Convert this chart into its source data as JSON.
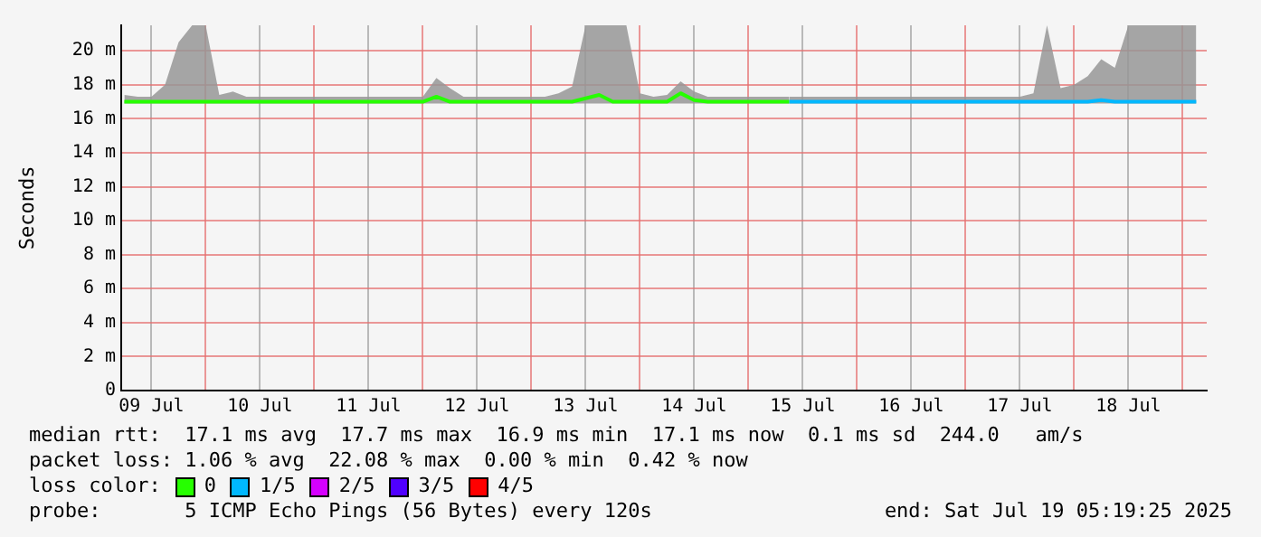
{
  "chart_data": {
    "type": "line",
    "ylabel": "Seconds",
    "legend_title": "loss color:",
    "legend": "bottom",
    "grid": true,
    "marker": "none",
    "line_style": "solid",
    "annotations": [
      "median rtt:  17.1 ms avg  17.7 ms max  16.9 ms min  17.1 ms now  0.1 ms sd  244.0   am/s",
      "packet loss: 1.06 % avg  22.08 % max  0.00 % min  0.42 % now",
      "probe:       5 ICMP Echo Pings (56 Bytes) every 120s",
      "end: Sat Jul 19 05:19:25 2025"
    ],
    "xlim": [
      "2025-07-09T05:19",
      "2025-07-19T05:19"
    ],
    "xticks": [
      {
        "value": "2025-07-09T12:00",
        "label": "09 Jul"
      },
      {
        "value": "2025-07-10T00:00",
        "label": null
      },
      {
        "value": "2025-07-10T12:00",
        "label": "10 Jul"
      },
      {
        "value": "2025-07-11T00:00",
        "label": null
      },
      {
        "value": "2025-07-11T12:00",
        "label": "11 Jul"
      },
      {
        "value": "2025-07-12T00:00",
        "label": null
      },
      {
        "value": "2025-07-12T12:00",
        "label": "12 Jul"
      },
      {
        "value": "2025-07-13T00:00",
        "label": null
      },
      {
        "value": "2025-07-13T12:00",
        "label": "13 Jul"
      },
      {
        "value": "2025-07-14T00:00",
        "label": null
      },
      {
        "value": "2025-07-14T12:00",
        "label": "14 Jul"
      },
      {
        "value": "2025-07-15T00:00",
        "label": null
      },
      {
        "value": "2025-07-15T12:00",
        "label": "15 Jul"
      },
      {
        "value": "2025-07-16T00:00",
        "label": null
      },
      {
        "value": "2025-07-16T12:00",
        "label": "16 Jul"
      },
      {
        "value": "2025-07-17T00:00",
        "label": null
      },
      {
        "value": "2025-07-17T12:00",
        "label": "17 Jul"
      },
      {
        "value": "2025-07-18T00:00",
        "label": null
      },
      {
        "value": "2025-07-18T12:00",
        "label": "18 Jul"
      },
      {
        "value": "2025-07-19T00:00",
        "label": null
      }
    ],
    "ylim": [
      0,
      21.5
    ],
    "yticks": [
      0,
      {
        "value": 2,
        "label": "2 m"
      },
      {
        "value": 4,
        "label": "4 m"
      },
      {
        "value": 6,
        "label": "6 m"
      },
      {
        "value": 8,
        "label": "8 m"
      },
      {
        "value": 10,
        "label": "10 m"
      },
      {
        "value": 12,
        "label": "12 m"
      },
      {
        "value": 14,
        "label": "14 m"
      },
      {
        "value": 16,
        "label": "16 m"
      },
      {
        "value": 18,
        "label": "18 m"
      },
      {
        "value": 20,
        "label": "20 m"
      }
    ],
    "x": [
      "2025-07-09T06:00",
      "2025-07-09T09:00",
      "2025-07-09T12:00",
      "2025-07-09T15:00",
      "2025-07-09T18:00",
      "2025-07-09T21:00",
      "2025-07-10T00:00",
      "2025-07-10T03:00",
      "2025-07-10T06:00",
      "2025-07-10T09:00",
      "2025-07-10T12:00",
      "2025-07-10T15:00",
      "2025-07-10T18:00",
      "2025-07-10T21:00",
      "2025-07-11T00:00",
      "2025-07-11T03:00",
      "2025-07-11T06:00",
      "2025-07-11T09:00",
      "2025-07-11T12:00",
      "2025-07-11T15:00",
      "2025-07-11T18:00",
      "2025-07-11T21:00",
      "2025-07-12T00:00",
      "2025-07-12T03:00",
      "2025-07-12T06:00",
      "2025-07-12T09:00",
      "2025-07-12T12:00",
      "2025-07-12T15:00",
      "2025-07-12T18:00",
      "2025-07-12T21:00",
      "2025-07-13T00:00",
      "2025-07-13T03:00",
      "2025-07-13T06:00",
      "2025-07-13T09:00",
      "2025-07-13T12:00",
      "2025-07-13T15:00",
      "2025-07-13T18:00",
      "2025-07-13T21:00",
      "2025-07-14T00:00",
      "2025-07-14T03:00",
      "2025-07-14T06:00",
      "2025-07-14T09:00",
      "2025-07-14T12:00",
      "2025-07-14T15:00",
      "2025-07-14T18:00",
      "2025-07-14T21:00",
      "2025-07-15T00:00",
      "2025-07-15T03:00",
      "2025-07-15T06:00",
      "2025-07-15T09:00",
      "2025-07-15T12:00",
      "2025-07-15T15:00",
      "2025-07-15T18:00",
      "2025-07-15T21:00",
      "2025-07-16T00:00",
      "2025-07-16T03:00",
      "2025-07-16T06:00",
      "2025-07-16T09:00",
      "2025-07-16T12:00",
      "2025-07-16T15:00",
      "2025-07-16T18:00",
      "2025-07-16T21:00",
      "2025-07-17T00:00",
      "2025-07-17T03:00",
      "2025-07-17T06:00",
      "2025-07-17T09:00",
      "2025-07-17T12:00",
      "2025-07-17T15:00",
      "2025-07-17T18:00",
      "2025-07-17T21:00",
      "2025-07-18T00:00",
      "2025-07-18T03:00",
      "2025-07-18T06:00",
      "2025-07-18T09:00",
      "2025-07-18T12:00",
      "2025-07-18T15:00",
      "2025-07-18T18:00",
      "2025-07-18T21:00",
      "2025-07-19T00:00",
      "2025-07-19T03:00"
    ],
    "series": [
      {
        "name": "0",
        "color": "#26ff00",
        "values": [
          17.0,
          17.0,
          17.0,
          17.0,
          17.0,
          17.0,
          17.0,
          17.0,
          17.0,
          17.0,
          17.0,
          17.0,
          17.0,
          17.0,
          17.0,
          17.0,
          17.0,
          17.0,
          17.0,
          17.0,
          17.0,
          17.0,
          17.0,
          17.3,
          17.0,
          17.0,
          17.0,
          17.0,
          17.0,
          17.0,
          17.0,
          17.0,
          17.0,
          17.0,
          17.2,
          17.4,
          17.0,
          17.0,
          17.0,
          17.0,
          17.0,
          17.5,
          17.1,
          17.0,
          17.0,
          17.0,
          17.0,
          17.0,
          17.0,
          17.0,
          null,
          null,
          null,
          null,
          null,
          null,
          null,
          null,
          null,
          null,
          null,
          null,
          null,
          null,
          null,
          null,
          null,
          null,
          null,
          null,
          null,
          null,
          null,
          null,
          null,
          null,
          null,
          null,
          null,
          null
        ],
        "lower": [
          16.9,
          16.9,
          16.9,
          16.9,
          16.9,
          16.9,
          16.9,
          16.9,
          16.9,
          16.9,
          16.9,
          16.9,
          16.9,
          16.9,
          16.9,
          16.9,
          16.9,
          16.9,
          16.9,
          16.9,
          16.9,
          16.9,
          16.9,
          16.9,
          16.9,
          16.9,
          16.9,
          16.9,
          16.9,
          16.9,
          16.9,
          16.9,
          16.9,
          16.9,
          16.9,
          16.9,
          16.9,
          16.9,
          16.9,
          16.9,
          16.9,
          16.9,
          16.9,
          16.9,
          16.9,
          16.9,
          16.9,
          16.9,
          16.9,
          16.9,
          null,
          null,
          null,
          null,
          null,
          null,
          null,
          null,
          null,
          null,
          null,
          null,
          null,
          null,
          null,
          null,
          null,
          null,
          null,
          null,
          null,
          null,
          null,
          null,
          null,
          null,
          null,
          null,
          null,
          null
        ],
        "upper": [
          17.4,
          17.3,
          17.3,
          18.0,
          20.5,
          21.5,
          21.5,
          17.4,
          17.6,
          17.3,
          17.3,
          17.3,
          17.3,
          17.3,
          17.3,
          17.3,
          17.3,
          17.3,
          17.3,
          17.3,
          17.3,
          17.3,
          17.3,
          18.4,
          17.8,
          17.3,
          17.3,
          17.3,
          17.3,
          17.3,
          17.3,
          17.3,
          17.5,
          17.9,
          21.5,
          21.5,
          21.5,
          21.5,
          17.5,
          17.3,
          17.4,
          18.2,
          17.6,
          17.3,
          17.3,
          17.3,
          17.3,
          17.3,
          17.3,
          17.3,
          null,
          null,
          null,
          null,
          null,
          null,
          null,
          null,
          null,
          null,
          null,
          null,
          null,
          null,
          null,
          null,
          null,
          null,
          null,
          null,
          null,
          null,
          null,
          null,
          null,
          null,
          null,
          null,
          null,
          null
        ]
      },
      {
        "name": "1/5",
        "color": "#00b8ff",
        "values": [
          null,
          null,
          null,
          null,
          null,
          null,
          null,
          null,
          null,
          null,
          null,
          null,
          null,
          null,
          null,
          null,
          null,
          null,
          null,
          null,
          null,
          null,
          null,
          null,
          null,
          null,
          null,
          null,
          null,
          null,
          null,
          null,
          null,
          null,
          null,
          null,
          null,
          null,
          null,
          null,
          null,
          null,
          null,
          null,
          null,
          null,
          null,
          null,
          null,
          17.0,
          17.0,
          17.0,
          17.0,
          17.0,
          17.0,
          17.0,
          17.0,
          17.0,
          17.0,
          17.0,
          17.0,
          17.0,
          17.0,
          17.0,
          17.0,
          17.0,
          17.0,
          17.0,
          17.0,
          17.0,
          17.0,
          17.0,
          17.1,
          17.0,
          17.0,
          17.0,
          17.0,
          17.0,
          17.0,
          17.0
        ],
        "lower": [
          null,
          null,
          null,
          null,
          null,
          null,
          null,
          null,
          null,
          null,
          null,
          null,
          null,
          null,
          null,
          null,
          null,
          null,
          null,
          null,
          null,
          null,
          null,
          null,
          null,
          null,
          null,
          null,
          null,
          null,
          null,
          null,
          null,
          null,
          null,
          null,
          null,
          null,
          null,
          null,
          null,
          null,
          null,
          null,
          null,
          null,
          null,
          null,
          null,
          16.9,
          16.9,
          16.9,
          16.9,
          16.9,
          16.9,
          16.9,
          16.9,
          16.9,
          16.9,
          16.9,
          16.9,
          16.9,
          16.9,
          16.9,
          16.9,
          16.9,
          16.9,
          16.9,
          16.9,
          16.9,
          16.9,
          16.9,
          16.9,
          16.9,
          16.9,
          16.9,
          16.9,
          16.9,
          16.9,
          16.9
        ],
        "upper": [
          null,
          null,
          null,
          null,
          null,
          null,
          null,
          null,
          null,
          null,
          null,
          null,
          null,
          null,
          null,
          null,
          null,
          null,
          null,
          null,
          null,
          null,
          null,
          null,
          null,
          null,
          null,
          null,
          null,
          null,
          null,
          null,
          null,
          null,
          null,
          null,
          null,
          null,
          null,
          null,
          null,
          null,
          null,
          null,
          null,
          null,
          null,
          null,
          null,
          17.3,
          17.3,
          17.3,
          17.3,
          17.3,
          17.3,
          17.3,
          17.3,
          17.3,
          17.3,
          17.3,
          17.3,
          17.3,
          17.3,
          17.3,
          17.3,
          17.3,
          17.3,
          17.5,
          21.5,
          17.8,
          18.0,
          18.5,
          19.5,
          19.0,
          21.5,
          21.5,
          21.5,
          21.5,
          21.5,
          21.5
        ]
      },
      {
        "name": "2/5",
        "color": "#d500ff",
        "values": [
          null,
          null,
          null,
          null,
          null,
          null,
          null,
          null,
          null,
          null,
          null,
          null,
          null,
          null,
          null,
          null,
          null,
          null,
          null,
          null,
          null,
          null,
          null,
          null,
          null,
          null,
          null,
          null,
          null,
          null,
          null,
          null,
          null,
          null,
          null,
          null,
          null,
          null,
          null,
          null,
          null,
          null,
          null,
          null,
          null,
          null,
          null,
          null,
          null,
          null,
          null,
          null,
          null,
          null,
          null,
          null,
          null,
          null,
          null,
          null,
          null,
          null,
          null,
          null,
          null,
          null,
          null,
          null,
          null,
          null,
          null,
          null,
          null,
          null,
          null,
          null,
          null,
          null,
          null,
          null
        ]
      },
      {
        "name": "3/5",
        "color": "#5000ff",
        "values": [
          null,
          null,
          null,
          null,
          null,
          null,
          null,
          null,
          null,
          null,
          null,
          null,
          null,
          null,
          null,
          null,
          null,
          null,
          null,
          null,
          null,
          null,
          null,
          null,
          null,
          null,
          null,
          null,
          null,
          null,
          null,
          null,
          null,
          null,
          null,
          null,
          null,
          null,
          null,
          null,
          null,
          null,
          null,
          null,
          null,
          null,
          null,
          null,
          null,
          null,
          null,
          null,
          null,
          null,
          null,
          null,
          null,
          null,
          null,
          null,
          null,
          null,
          null,
          null,
          null,
          null,
          null,
          null,
          null,
          null,
          null,
          null,
          null,
          null,
          null,
          null,
          null,
          null,
          null,
          null
        ]
      },
      {
        "name": "4/5",
        "color": "#ff0000",
        "values": [
          null,
          null,
          null,
          null,
          null,
          null,
          null,
          null,
          null,
          null,
          null,
          null,
          null,
          null,
          null,
          null,
          null,
          null,
          null,
          null,
          null,
          null,
          null,
          null,
          null,
          null,
          null,
          null,
          null,
          null,
          null,
          null,
          null,
          null,
          null,
          null,
          null,
          null,
          null,
          null,
          null,
          null,
          null,
          null,
          null,
          null,
          null,
          null,
          null,
          null,
          null,
          null,
          null,
          null,
          null,
          null,
          null,
          null,
          null,
          null,
          null,
          null,
          null,
          null,
          null,
          null,
          null,
          null,
          null,
          null,
          null,
          null,
          null,
          null,
          null,
          null,
          null,
          null,
          null,
          null
        ]
      }
    ]
  }
}
